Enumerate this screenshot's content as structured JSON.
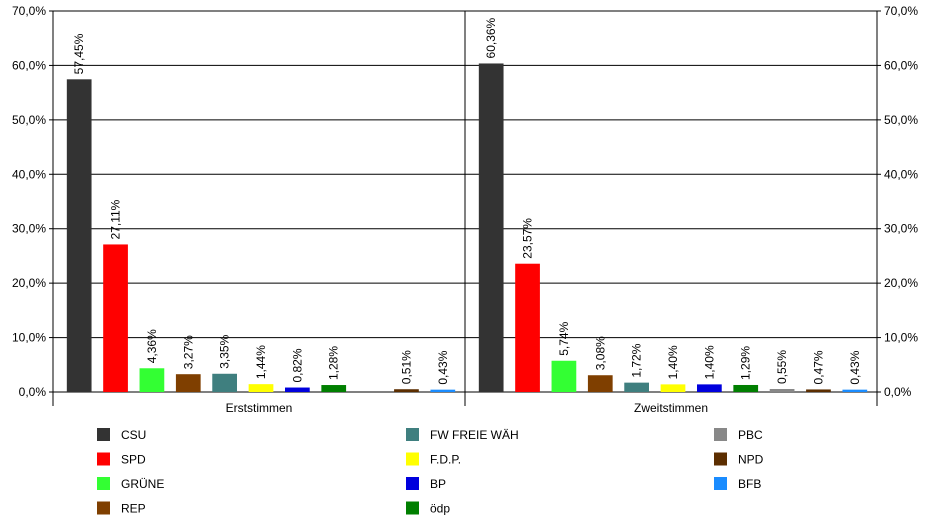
{
  "chart_data": {
    "type": "bar",
    "groups": [
      "Erststimmen",
      "Zweitstimmen"
    ],
    "ylim": [
      0,
      70
    ],
    "yticks": [
      "0,0%",
      "10,0%",
      "20,0%",
      "30,0%",
      "40,0%",
      "50,0%",
      "60,0%",
      "70,0%"
    ],
    "grid": true,
    "legend_position": "bottom",
    "series": [
      {
        "name": "CSU",
        "color": "#333333",
        "values": [
          57.45,
          60.36
        ],
        "labels": [
          "57,45%",
          "60,36%"
        ]
      },
      {
        "name": "SPD",
        "color": "#ff0000",
        "values": [
          27.11,
          23.57
        ],
        "labels": [
          "27,11%",
          "23,57%"
        ]
      },
      {
        "name": "GRÜNE",
        "color": "#33ff33",
        "values": [
          4.36,
          5.74
        ],
        "labels": [
          "4,36%",
          "5,74%"
        ]
      },
      {
        "name": "REP",
        "color": "#7f3f00",
        "values": [
          3.27,
          3.08
        ],
        "labels": [
          "3,27%",
          "3,08%"
        ]
      },
      {
        "name": "FW FREIE WÄH",
        "color": "#3f7f7f",
        "values": [
          3.35,
          1.72
        ],
        "labels": [
          "3,35%",
          "1,72%"
        ]
      },
      {
        "name": "F.D.P.",
        "color": "#ffff00",
        "values": [
          1.44,
          1.4
        ],
        "labels": [
          "1,44%",
          "1,40%"
        ]
      },
      {
        "name": "BP",
        "color": "#0000dd",
        "values": [
          0.82,
          1.4
        ],
        "labels": [
          "0,82%",
          "1,40%"
        ]
      },
      {
        "name": "ödp",
        "color": "#007f00",
        "values": [
          1.28,
          1.29
        ],
        "labels": [
          "1,28%",
          "1,29%"
        ]
      },
      {
        "name": "PBC",
        "color": "#888888",
        "values": [
          null,
          0.55
        ],
        "labels": [
          "",
          "0,55%"
        ]
      },
      {
        "name": "NPD",
        "color": "#5c2e00",
        "values": [
          0.51,
          0.47
        ],
        "labels": [
          "0,51%",
          "0,47%"
        ]
      },
      {
        "name": "BFB",
        "color": "#1a8cff",
        "values": [
          0.43,
          0.43
        ],
        "labels": [
          "0,43%",
          "0,43%"
        ]
      }
    ]
  },
  "legend_columns": [
    [
      "CSU",
      "SPD",
      "GRÜNE",
      "REP"
    ],
    [
      "FW FREIE WÄH",
      "F.D.P.",
      "BP",
      "ödp"
    ],
    [
      "PBC",
      "NPD",
      "BFB"
    ]
  ]
}
